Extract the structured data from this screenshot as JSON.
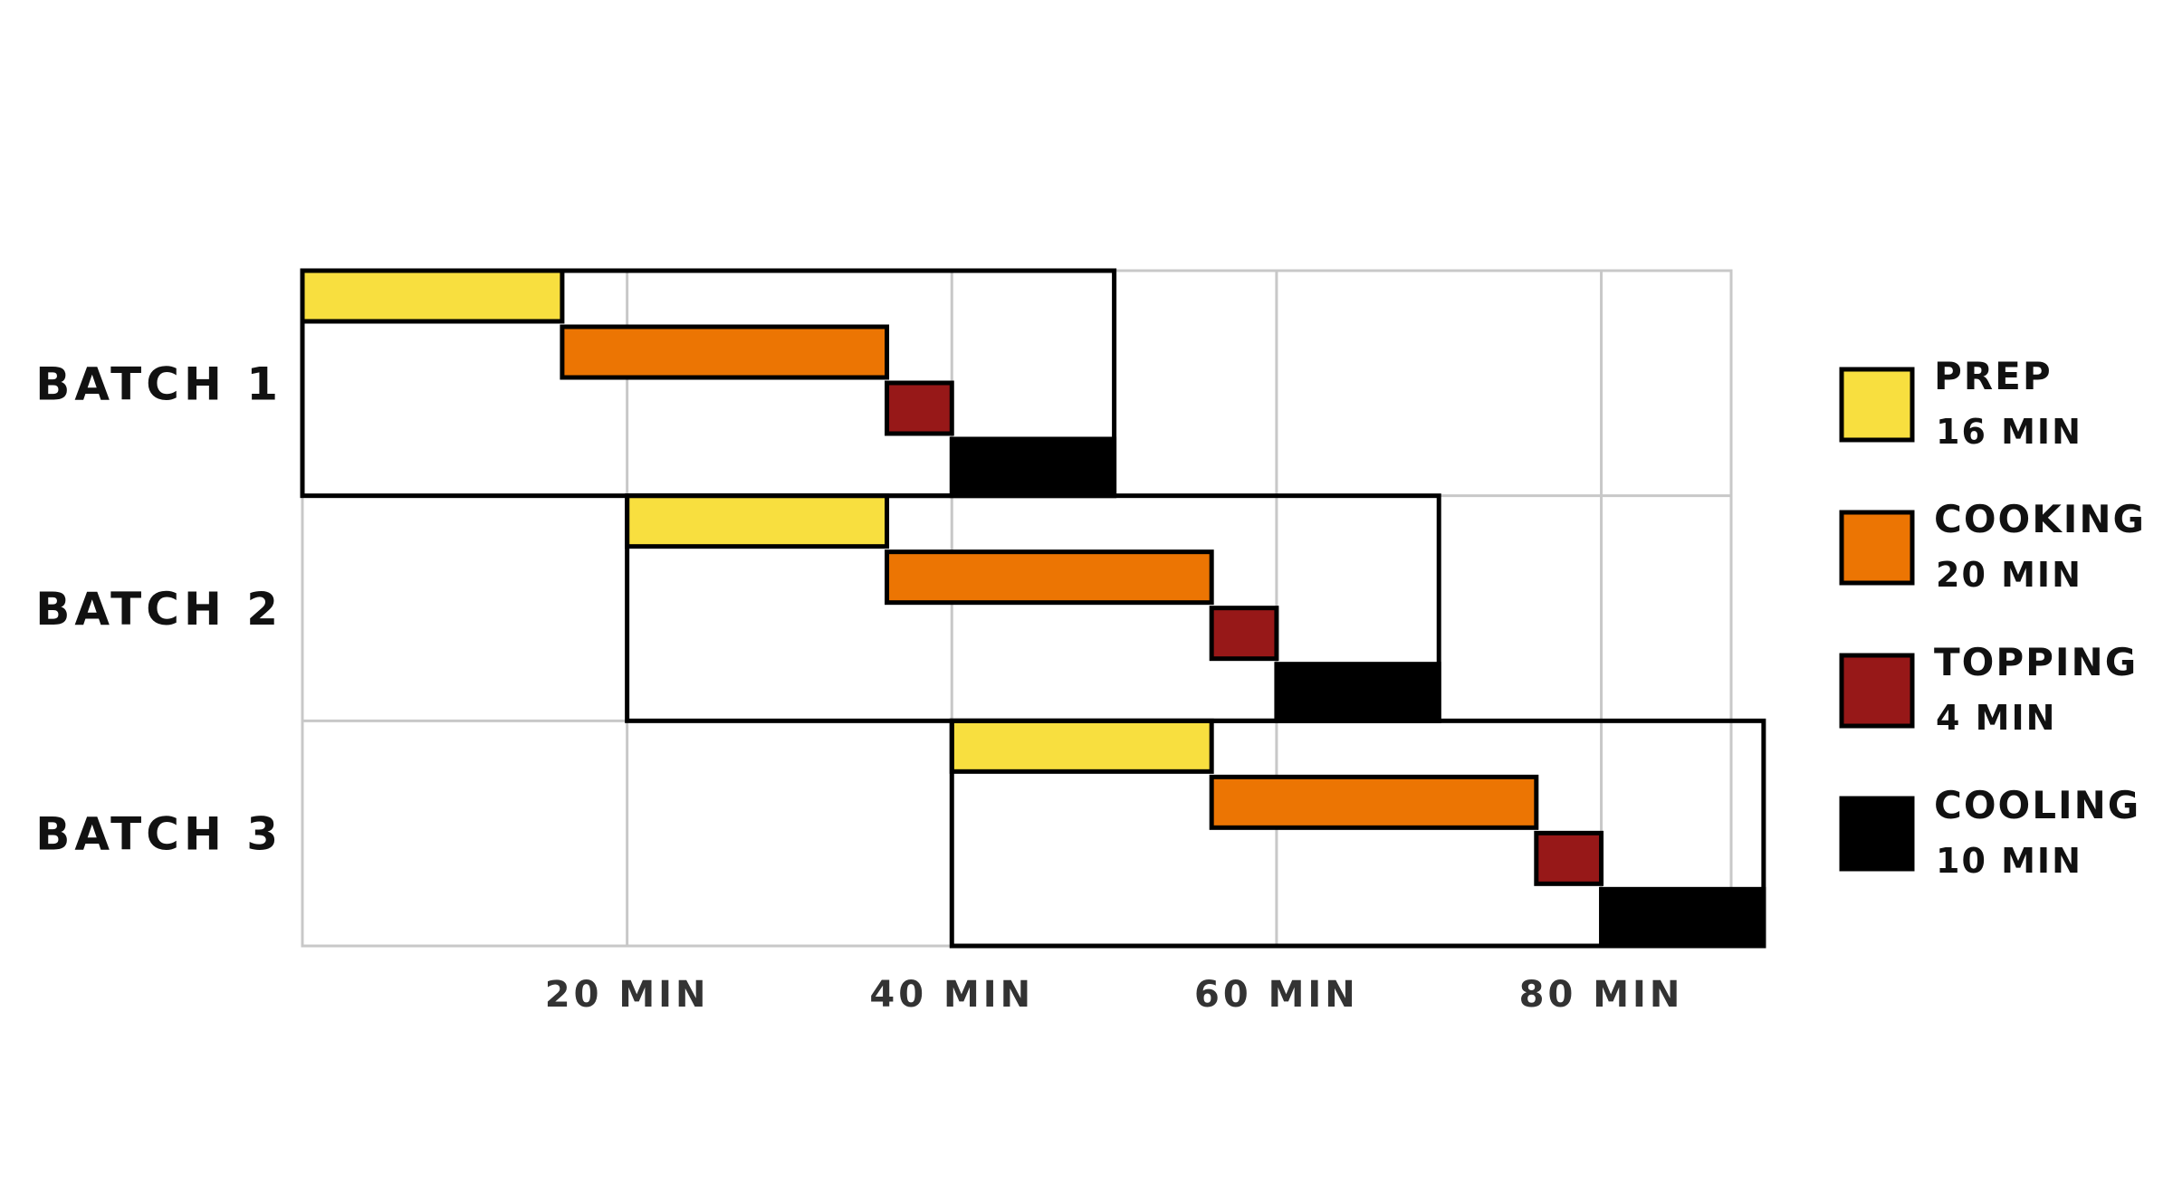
{
  "chart_data": {
    "type": "gantt",
    "xlim": [
      0,
      88
    ],
    "grid": true,
    "legend_position": "right",
    "x_ticks": [
      {
        "value": 20,
        "label": "20 MIN"
      },
      {
        "value": 40,
        "label": "40 MIN"
      },
      {
        "value": 60,
        "label": "60 MIN"
      },
      {
        "value": 80,
        "label": "80 MIN"
      }
    ],
    "phases": [
      {
        "key": "prep",
        "name": "PREP",
        "duration_label": "16 MIN",
        "duration": 16,
        "color": "#F8DF3F"
      },
      {
        "key": "cooking",
        "name": "COOKING",
        "duration_label": "20 MIN",
        "duration": 20,
        "color": "#EC7503"
      },
      {
        "key": "topping",
        "name": "TOPPING",
        "duration_label": "4 MIN",
        "duration": 4,
        "color": "#971818"
      },
      {
        "key": "cooling",
        "name": "COOLING",
        "duration_label": "10 MIN",
        "duration": 10,
        "color": "#000000"
      }
    ],
    "batches": [
      {
        "label": "BATCH 1",
        "start": 0
      },
      {
        "label": "BATCH 2",
        "start": 20
      },
      {
        "label": "BATCH 3",
        "start": 40
      }
    ]
  }
}
